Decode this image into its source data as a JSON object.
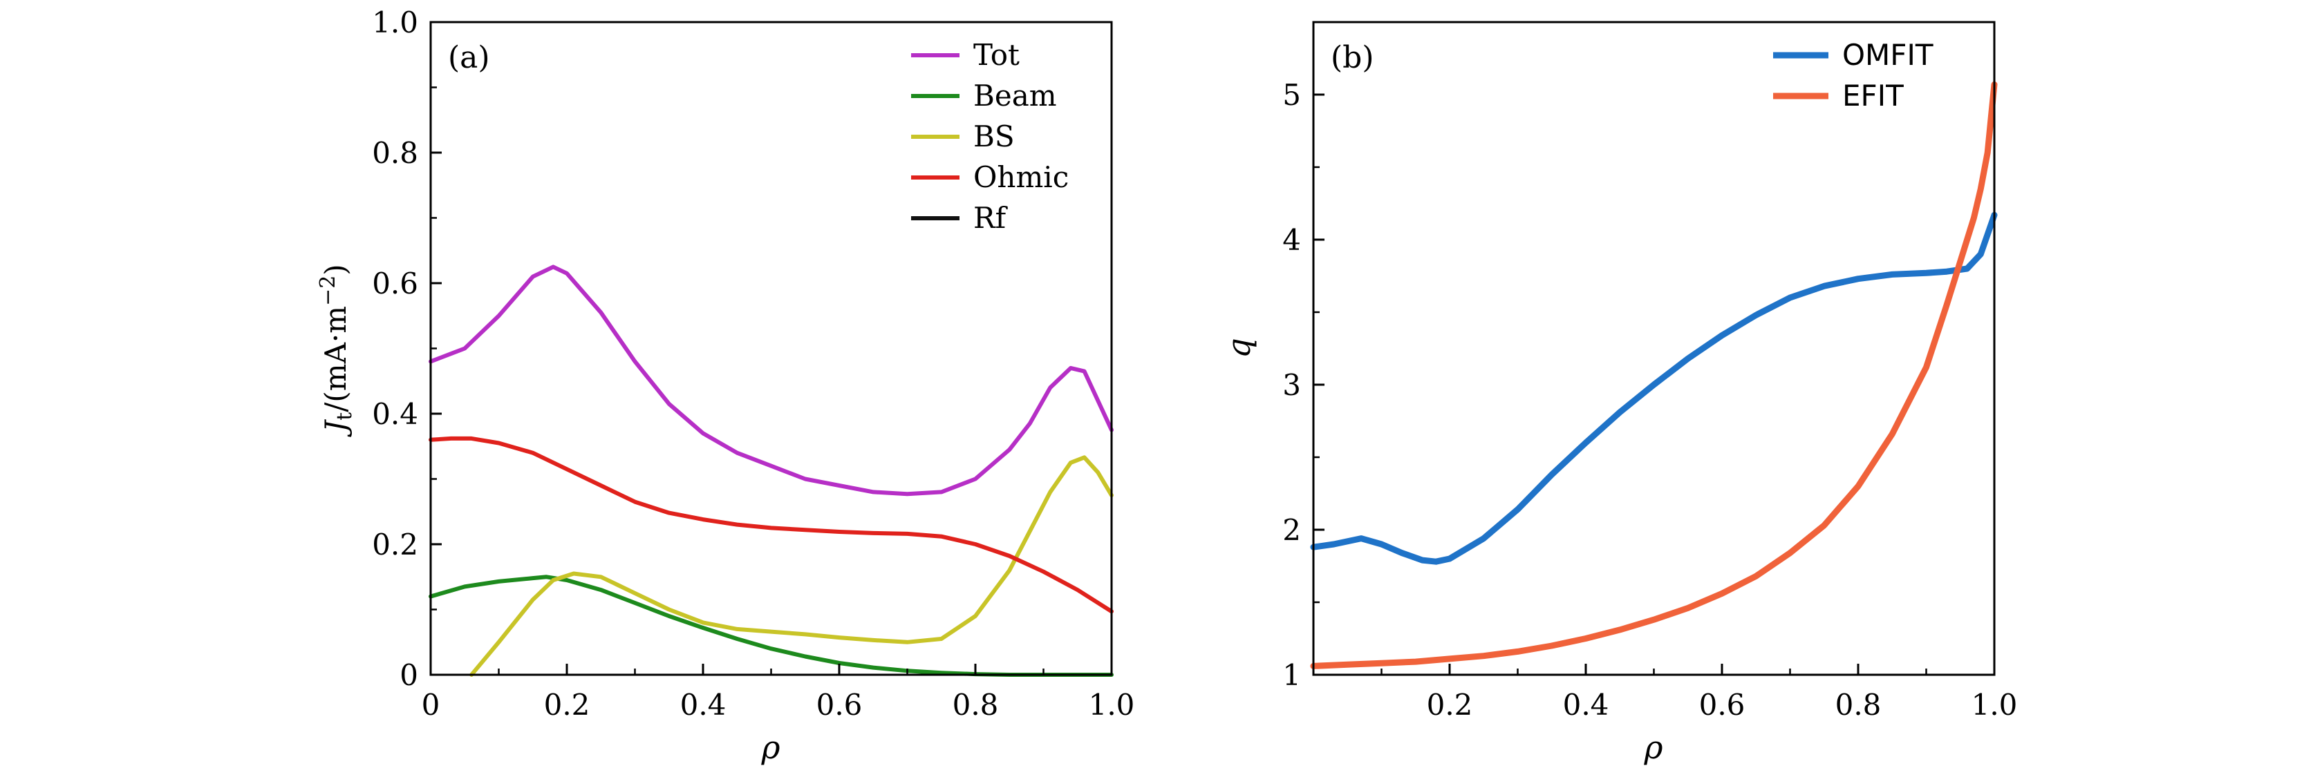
{
  "chart_data": [
    {
      "type": "line",
      "panel_label": "(a)",
      "xlabel": "ρ",
      "ylabel_main": "J",
      "ylabel_sub": "t",
      "ylabel_unit": "/(mA·m",
      "ylabel_exp": "−2",
      "ylabel_close": ")",
      "xlim": [
        0,
        1.0
      ],
      "ylim": [
        0,
        1.0
      ],
      "xticks": [
        "0",
        "0.2",
        "0.4",
        "0.6",
        "0.8",
        "1.0"
      ],
      "yticks": [
        "0",
        "0.2",
        "0.4",
        "0.6",
        "0.8",
        "1.0"
      ],
      "legend_position": "top-right",
      "series": [
        {
          "name": "Tot",
          "color": "#b62fc6",
          "x": [
            0,
            0.05,
            0.1,
            0.15,
            0.18,
            0.2,
            0.25,
            0.3,
            0.35,
            0.4,
            0.45,
            0.5,
            0.55,
            0.6,
            0.65,
            0.7,
            0.75,
            0.8,
            0.85,
            0.88,
            0.91,
            0.94,
            0.96,
            0.98,
            1.0
          ],
          "y": [
            0.48,
            0.5,
            0.55,
            0.61,
            0.625,
            0.615,
            0.555,
            0.48,
            0.415,
            0.37,
            0.34,
            0.32,
            0.3,
            0.29,
            0.28,
            0.277,
            0.28,
            0.3,
            0.345,
            0.385,
            0.44,
            0.47,
            0.465,
            0.42,
            0.375
          ]
        },
        {
          "name": "Beam",
          "color": "#1d8a1d",
          "x": [
            0,
            0.05,
            0.1,
            0.15,
            0.17,
            0.2,
            0.25,
            0.3,
            0.35,
            0.4,
            0.45,
            0.5,
            0.55,
            0.6,
            0.65,
            0.7,
            0.75,
            0.8,
            0.85,
            0.9,
            0.95,
            1.0
          ],
          "y": [
            0.12,
            0.135,
            0.143,
            0.148,
            0.15,
            0.145,
            0.13,
            0.11,
            0.09,
            0.072,
            0.055,
            0.04,
            0.028,
            0.018,
            0.011,
            0.006,
            0.003,
            0.001,
            0.0,
            0.0,
            0.0,
            0.0
          ]
        },
        {
          "name": "BS",
          "color": "#c8c428",
          "x": [
            0.06,
            0.1,
            0.15,
            0.18,
            0.21,
            0.25,
            0.3,
            0.35,
            0.4,
            0.45,
            0.5,
            0.55,
            0.6,
            0.65,
            0.7,
            0.75,
            0.8,
            0.85,
            0.88,
            0.91,
            0.94,
            0.96,
            0.98,
            1.0
          ],
          "y": [
            0.0,
            0.05,
            0.115,
            0.145,
            0.155,
            0.15,
            0.125,
            0.1,
            0.08,
            0.07,
            0.066,
            0.062,
            0.057,
            0.053,
            0.05,
            0.055,
            0.09,
            0.16,
            0.22,
            0.28,
            0.325,
            0.333,
            0.31,
            0.275
          ]
        },
        {
          "name": "Ohmic",
          "color": "#e0221c",
          "x": [
            0,
            0.03,
            0.06,
            0.1,
            0.15,
            0.2,
            0.25,
            0.3,
            0.35,
            0.4,
            0.45,
            0.5,
            0.55,
            0.6,
            0.65,
            0.7,
            0.75,
            0.8,
            0.85,
            0.9,
            0.95,
            1.0
          ],
          "y": [
            0.36,
            0.362,
            0.362,
            0.355,
            0.34,
            0.315,
            0.29,
            0.265,
            0.248,
            0.238,
            0.23,
            0.225,
            0.222,
            0.219,
            0.217,
            0.216,
            0.212,
            0.2,
            0.182,
            0.158,
            0.13,
            0.097
          ]
        },
        {
          "name": "Rf",
          "color": "#111111",
          "x": [],
          "y": []
        }
      ]
    },
    {
      "type": "line",
      "panel_label": "(b)",
      "xlabel": "ρ",
      "ylabel": "q",
      "xlim": [
        0.0,
        1.0
      ],
      "ylim": [
        1,
        5.5
      ],
      "xticks": [
        "0.2",
        "0.4",
        "0.6",
        "0.8",
        "1.0"
      ],
      "xtick_values": [
        0.2,
        0.4,
        0.6,
        0.8,
        1.0
      ],
      "yticks": [
        "1",
        "2",
        "3",
        "4",
        "5"
      ],
      "ytick_values": [
        1,
        2,
        3,
        4,
        5
      ],
      "legend_position": "top-right",
      "series": [
        {
          "name": "OMFIT",
          "color": "#1f73c8",
          "x": [
            0,
            0.03,
            0.07,
            0.1,
            0.13,
            0.16,
            0.18,
            0.2,
            0.25,
            0.3,
            0.35,
            0.4,
            0.45,
            0.5,
            0.55,
            0.6,
            0.65,
            0.7,
            0.75,
            0.8,
            0.85,
            0.9,
            0.93,
            0.96,
            0.98,
            1.0
          ],
          "y": [
            1.88,
            1.9,
            1.94,
            1.9,
            1.84,
            1.79,
            1.78,
            1.8,
            1.94,
            2.14,
            2.38,
            2.6,
            2.81,
            3.0,
            3.18,
            3.34,
            3.48,
            3.6,
            3.68,
            3.73,
            3.76,
            3.77,
            3.78,
            3.8,
            3.9,
            4.17
          ]
        },
        {
          "name": "EFIT",
          "color": "#f0623a",
          "x": [
            0,
            0.05,
            0.1,
            0.15,
            0.2,
            0.25,
            0.3,
            0.35,
            0.4,
            0.45,
            0.5,
            0.55,
            0.6,
            0.65,
            0.7,
            0.75,
            0.8,
            0.85,
            0.9,
            0.93,
            0.95,
            0.97,
            0.98,
            0.99,
            1.0
          ],
          "y": [
            1.06,
            1.07,
            1.08,
            1.09,
            1.11,
            1.13,
            1.16,
            1.2,
            1.25,
            1.31,
            1.38,
            1.46,
            1.56,
            1.68,
            1.84,
            2.03,
            2.3,
            2.66,
            3.12,
            3.55,
            3.85,
            4.15,
            4.35,
            4.6,
            5.07
          ]
        }
      ]
    }
  ]
}
